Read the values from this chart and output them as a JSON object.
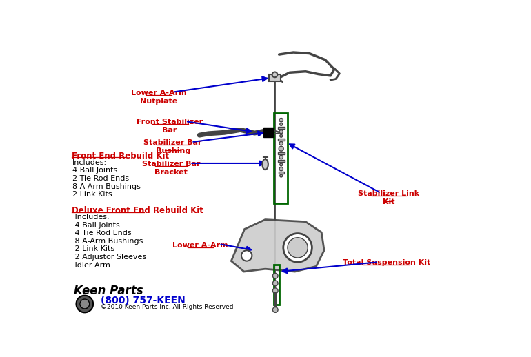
{
  "bg_color": "#ffffff",
  "label_color": "#cc0000",
  "arrow_color": "#0000cc",
  "text_color": "#000000",
  "phone_color": "#0000cc",
  "diagram_color": "#444444",
  "green_color": "#006600",
  "labels": {
    "lower_a_arm_nutplate": "Lower A-Arm\nNutplate",
    "front_stabilizer_bar": "Front Stabilizer\nBar",
    "stabilizer_bar_bushing": "Stabilizer Bar\nBushing",
    "stabilizer_bar_bracket": "Stabilizer Bar\nBracket",
    "stabilizer_link_kit": "Stabilizer Link\nKit",
    "lower_a_arm": "Lower A-Arm",
    "total_suspension_kit": "Total Suspension Kit",
    "front_end_rebuild_kit": "Front End Rebuild Kit",
    "front_end_rebuild_includes": "Includes:\n4 Ball Joints\n2 Tie Rod Ends\n8 A-Arm Bushings\n2 Link Kits",
    "deluxe_front_end_rebuild_kit": "Deluxe Front End Rebuild Kit",
    "deluxe_includes": " Includes:\n 4 Ball Joints\n 4 Tie Rod Ends\n 8 A-Arm Bushings\n 2 Link Kits\n 2 Adjustor Sleeves\n Idler Arm",
    "phone": "(800) 757-KEEN",
    "copyright": "©2010 Keen Parts Inc. All Rights Reserved"
  }
}
